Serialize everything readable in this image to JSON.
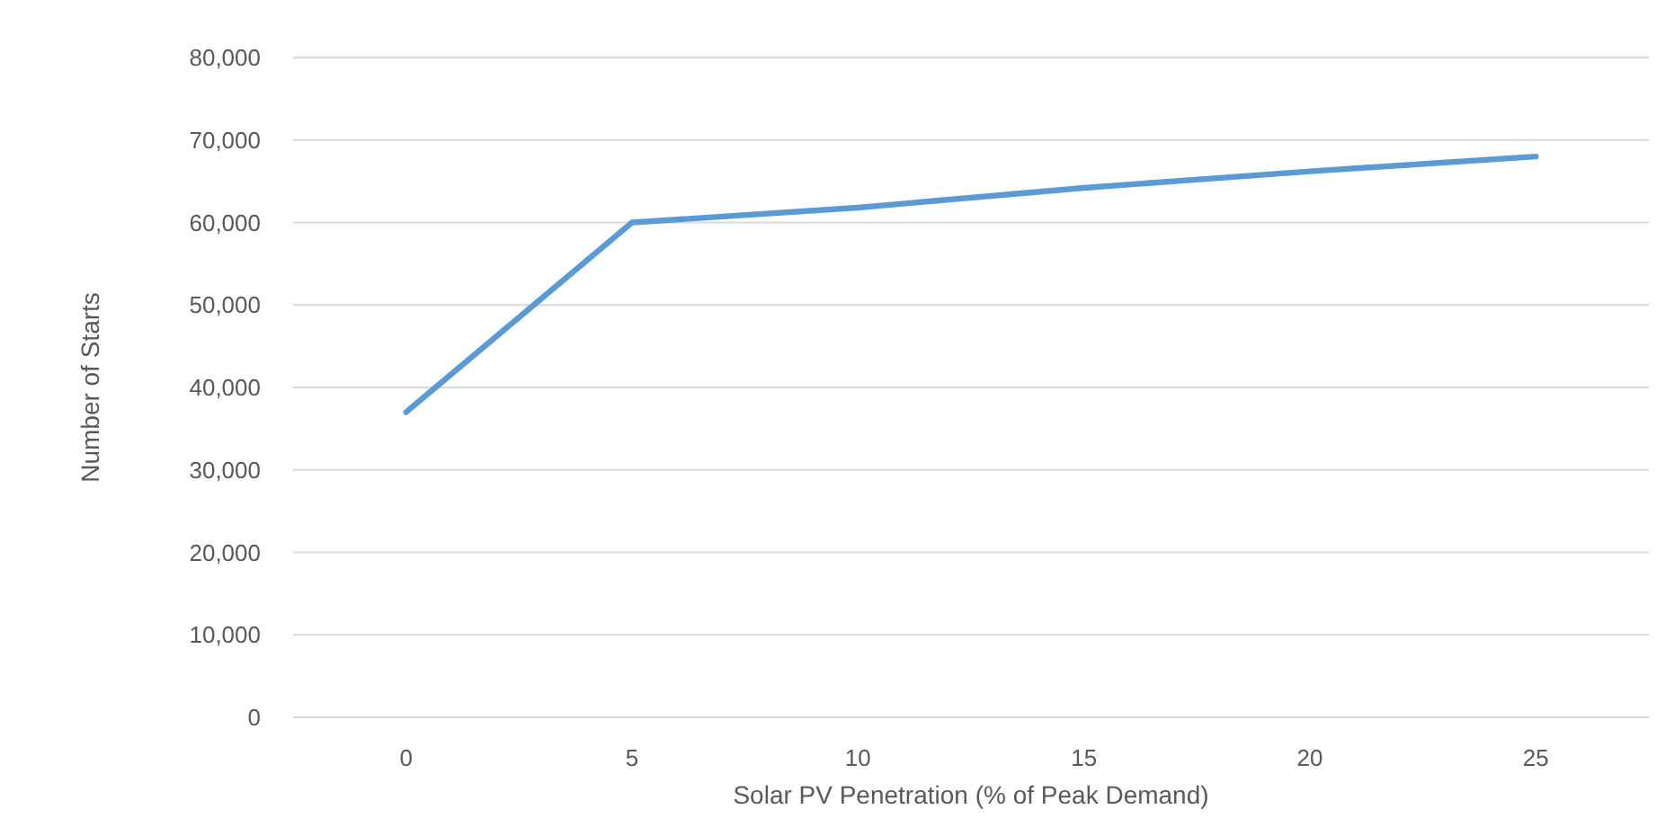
{
  "chart_data": {
    "type": "line",
    "xlabel": "Solar PV Penetration (% of Peak Demand)",
    "ylabel": "Number of Starts",
    "categories": [
      "0",
      "5",
      "10",
      "15",
      "20",
      "25"
    ],
    "series": [
      {
        "color": "#5b9bd5",
        "values": [
          37000,
          60000,
          61800,
          64200,
          66200,
          68000
        ]
      }
    ],
    "ylim": [
      0,
      80000
    ],
    "yticks": [
      {
        "value": 0,
        "label": "0"
      },
      {
        "value": 10000,
        "label": "10,000"
      },
      {
        "value": 20000,
        "label": "20,000"
      },
      {
        "value": 30000,
        "label": "30,000"
      },
      {
        "value": 40000,
        "label": "40,000"
      },
      {
        "value": 50000,
        "label": "50,000"
      },
      {
        "value": 60000,
        "label": "60,000"
      },
      {
        "value": 70000,
        "label": "70,000"
      },
      {
        "value": 80000,
        "label": "80,000"
      }
    ],
    "grid": "y",
    "marker": "none",
    "line_style": "solid"
  }
}
